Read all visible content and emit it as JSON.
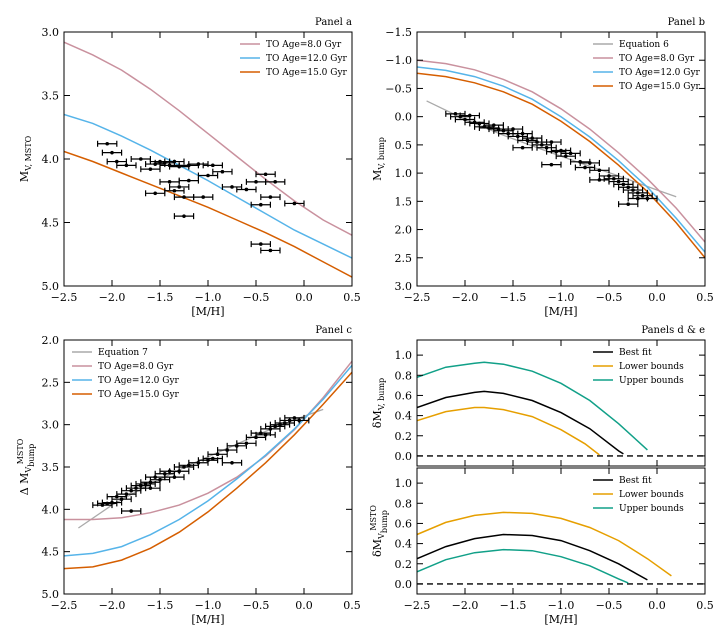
{
  "colors": {
    "age8": "#c9919e",
    "age12": "#56b4e9",
    "age15": "#d55e00",
    "eqn": "#aaaaaa",
    "best": "#000000",
    "lower": "#e69f00",
    "upper": "#11a088",
    "data": "#000000"
  },
  "chart_data": [
    {
      "id": "a",
      "type": "line",
      "title": "Panel a",
      "xlabel": "[M/H]",
      "ylabel_main": "M",
      "ylabel_sub": "V, MSTO",
      "xlim": [
        -2.5,
        0.5
      ],
      "ylim": [
        3.0,
        5.0
      ],
      "y_inverted": true,
      "x_ticks": [
        -2.5,
        -2.0,
        -1.5,
        -1.0,
        -0.5,
        0.0,
        0.5
      ],
      "x_tick_labels": [
        "−2.5",
        "−2.0",
        "−1.5",
        "−1.0",
        "−0.5",
        "0.0",
        "0.5"
      ],
      "y_ticks": [
        3.0,
        3.5,
        4.0,
        4.5,
        5.0
      ],
      "y_tick_labels": [
        "3.0",
        "3.5",
        "4.0",
        "4.5",
        "5.0"
      ],
      "legend": "top-right",
      "series": [
        {
          "name": "TO Age=8.0 Gyr",
          "color_key": "age8",
          "x": [
            -2.5,
            -2.2,
            -1.9,
            -1.6,
            -1.3,
            -1.0,
            -0.7,
            -0.4,
            -0.1,
            0.2,
            0.5
          ],
          "y": [
            3.08,
            3.18,
            3.3,
            3.45,
            3.62,
            3.8,
            3.98,
            4.16,
            4.33,
            4.48,
            4.6
          ]
        },
        {
          "name": "TO Age=12.0 Gyr",
          "color_key": "age12",
          "x": [
            -2.5,
            -2.2,
            -1.9,
            -1.6,
            -1.3,
            -1.0,
            -0.7,
            -0.4,
            -0.1,
            0.2,
            0.5
          ],
          "y": [
            3.65,
            3.72,
            3.82,
            3.93,
            4.05,
            4.17,
            4.3,
            4.43,
            4.56,
            4.67,
            4.78
          ]
        },
        {
          "name": "TO Age=15.0 Gyr",
          "color_key": "age15",
          "x": [
            -2.5,
            -2.2,
            -1.9,
            -1.6,
            -1.3,
            -1.0,
            -0.7,
            -0.4,
            -0.1,
            0.2,
            0.5
          ],
          "y": [
            3.94,
            4.02,
            4.11,
            4.2,
            4.29,
            4.38,
            4.48,
            4.58,
            4.69,
            4.81,
            4.93
          ]
        }
      ],
      "points": {
        "x": [
          -2.05,
          -2.0,
          -1.95,
          -1.85,
          -1.7,
          -1.6,
          -1.55,
          -1.5,
          -1.45,
          -1.4,
          -1.35,
          -1.3,
          -1.2,
          -1.1,
          -0.95,
          -0.85,
          -1.4,
          -1.3,
          -1.2,
          -1.0,
          -0.75,
          -0.6,
          -0.5,
          -0.4,
          -0.3,
          -1.55,
          -1.35,
          -1.05,
          -0.45,
          -0.35,
          -0.1,
          -0.45,
          -0.35,
          -1.25,
          -1.25
        ],
        "y": [
          3.88,
          3.95,
          4.02,
          4.05,
          4.0,
          4.08,
          4.04,
          4.02,
          4.03,
          4.05,
          4.02,
          4.06,
          4.05,
          4.04,
          4.05,
          4.1,
          4.18,
          4.22,
          4.17,
          4.13,
          4.22,
          4.24,
          4.18,
          4.12,
          4.18,
          4.27,
          4.25,
          4.3,
          4.36,
          4.3,
          4.35,
          4.67,
          4.72,
          4.45,
          4.3
        ],
        "xerr": 0.1
      }
    },
    {
      "id": "b",
      "type": "line",
      "title": "Panel b",
      "xlabel": "[M/H]",
      "ylabel_main": "M",
      "ylabel_sub": "V, bump",
      "xlim": [
        -2.5,
        0.5
      ],
      "ylim": [
        -1.5,
        3.0
      ],
      "y_inverted": true,
      "x_ticks": [
        -2.5,
        -2.0,
        -1.5,
        -1.0,
        -0.5,
        0.0,
        0.5
      ],
      "x_tick_labels": [
        "−2.5",
        "−2.0",
        "−1.5",
        "−1.0",
        "−0.5",
        "0.0",
        "0.5"
      ],
      "y_ticks": [
        -1.5,
        -1.0,
        -0.5,
        0.0,
        0.5,
        1.0,
        1.5,
        2.0,
        2.5,
        3.0
      ],
      "y_tick_labels": [
        "−1.5",
        "−1.0",
        "−0.5",
        "0.0",
        "0.5",
        "1.0",
        "1.5",
        "2.0",
        "2.5",
        "3.0"
      ],
      "legend": "top-right",
      "series": [
        {
          "name": "Equation 6",
          "color_key": "eqn",
          "x": [
            -2.4,
            -2.0,
            -1.6,
            -1.2,
            -0.8,
            -0.4,
            0.0,
            0.2
          ],
          "y": [
            -0.28,
            0.05,
            0.33,
            0.58,
            0.82,
            1.05,
            1.3,
            1.42
          ]
        },
        {
          "name": "TO Age=8.0 Gyr",
          "color_key": "age8",
          "x": [
            -2.5,
            -2.2,
            -1.9,
            -1.6,
            -1.3,
            -1.0,
            -0.7,
            -0.4,
            -0.1,
            0.2,
            0.5
          ],
          "y": [
            -1.0,
            -0.94,
            -0.83,
            -0.66,
            -0.44,
            -0.14,
            0.22,
            0.64,
            1.1,
            1.62,
            2.22
          ]
        },
        {
          "name": "TO Age=12.0 Gyr",
          "color_key": "age12",
          "x": [
            -2.5,
            -2.2,
            -1.9,
            -1.6,
            -1.3,
            -1.0,
            -0.7,
            -0.4,
            -0.1,
            0.2,
            0.5
          ],
          "y": [
            -0.88,
            -0.82,
            -0.71,
            -0.54,
            -0.31,
            0.0,
            0.36,
            0.78,
            1.25,
            1.8,
            2.4
          ]
        },
        {
          "name": "TO Age=15.0 Gyr",
          "color_key": "age15",
          "x": [
            -2.5,
            -2.2,
            -1.9,
            -1.6,
            -1.3,
            -1.0,
            -0.7,
            -0.4,
            -0.1,
            0.2,
            0.5
          ],
          "y": [
            -0.77,
            -0.71,
            -0.6,
            -0.44,
            -0.22,
            0.08,
            0.44,
            0.86,
            1.33,
            1.88,
            2.5
          ]
        }
      ],
      "points": {
        "x": [
          -2.1,
          -2.05,
          -2.0,
          -1.95,
          -1.9,
          -1.85,
          -1.8,
          -1.75,
          -1.7,
          -1.65,
          -1.6,
          -1.55,
          -1.5,
          -1.45,
          -1.4,
          -1.35,
          -1.3,
          -1.25,
          -1.2,
          -1.15,
          -1.1,
          -1.05,
          -1.0,
          -0.95,
          -0.9,
          -0.8,
          -0.75,
          -0.7,
          -0.6,
          -0.5,
          -0.45,
          -0.4,
          -0.35,
          -0.3,
          -0.25,
          -0.2,
          -0.15,
          -0.1,
          -1.4,
          -1.1,
          -0.6,
          -0.3,
          -0.2
        ],
        "y": [
          -0.05,
          0.0,
          0.05,
          -0.02,
          0.1,
          0.12,
          0.18,
          0.2,
          0.15,
          0.22,
          0.25,
          0.3,
          0.22,
          0.35,
          0.3,
          0.42,
          0.38,
          0.45,
          0.5,
          0.55,
          0.45,
          0.62,
          0.6,
          0.7,
          0.65,
          0.8,
          0.9,
          0.82,
          0.95,
          1.05,
          1.1,
          1.15,
          1.2,
          1.25,
          1.3,
          1.35,
          1.4,
          1.45,
          0.55,
          0.85,
          1.12,
          1.55,
          1.45
        ],
        "xerr": 0.1
      }
    },
    {
      "id": "c",
      "type": "line",
      "title": "Panel c",
      "xlabel": "[M/H]",
      "ylabel_main": "Δ M",
      "ylabel_sub": "V",
      "ylabel_sup": "MSTO",
      "ylabel_sub2": "bump",
      "xlim": [
        -2.5,
        0.5
      ],
      "ylim": [
        2.0,
        5.0
      ],
      "y_inverted": true,
      "x_ticks": [
        -2.5,
        -2.0,
        -1.5,
        -1.0,
        -0.5,
        0.0,
        0.5
      ],
      "x_tick_labels": [
        "−2.5",
        "−2.0",
        "−1.5",
        "−1.0",
        "−0.5",
        "0.0",
        "0.5"
      ],
      "y_ticks": [
        2.0,
        2.5,
        3.0,
        3.5,
        4.0,
        4.5,
        5.0
      ],
      "y_tick_labels": [
        "2.0",
        "2.5",
        "3.0",
        "3.5",
        "4.0",
        "4.5",
        "5.0"
      ],
      "legend": "top-left",
      "series": [
        {
          "name": "Equation 7",
          "color_key": "eqn",
          "x": [
            -2.35,
            -2.0,
            -1.6,
            -1.2,
            -0.8,
            -0.4,
            0.0,
            0.2
          ],
          "y": [
            4.22,
            3.95,
            3.7,
            3.48,
            3.28,
            3.08,
            2.9,
            2.82
          ]
        },
        {
          "name": "TO Age=8.0 Gyr",
          "color_key": "age8",
          "x": [
            -2.5,
            -2.2,
            -1.9,
            -1.6,
            -1.3,
            -1.0,
            -0.7,
            -0.4,
            -0.1,
            0.2,
            0.5
          ],
          "y": [
            4.12,
            4.12,
            4.1,
            4.04,
            3.95,
            3.81,
            3.62,
            3.37,
            3.06,
            2.68,
            2.25
          ]
        },
        {
          "name": "TO Age=12.0 Gyr",
          "color_key": "age12",
          "x": [
            -2.5,
            -2.2,
            -1.9,
            -1.6,
            -1.3,
            -1.0,
            -0.7,
            -0.4,
            -0.1,
            0.2,
            0.5
          ],
          "y": [
            4.55,
            4.52,
            4.44,
            4.3,
            4.12,
            3.9,
            3.64,
            3.36,
            3.05,
            2.7,
            2.3
          ]
        },
        {
          "name": "TO Age=15.0 Gyr",
          "color_key": "age15",
          "x": [
            -2.5,
            -2.2,
            -1.9,
            -1.6,
            -1.3,
            -1.0,
            -0.7,
            -0.4,
            -0.1,
            0.2,
            0.5
          ],
          "y": [
            4.7,
            4.68,
            4.6,
            4.46,
            4.27,
            4.03,
            3.75,
            3.45,
            3.12,
            2.76,
            2.38
          ]
        }
      ],
      "points": {
        "x": [
          -2.1,
          -2.05,
          -2.0,
          -1.95,
          -1.9,
          -1.85,
          -1.8,
          -1.75,
          -1.7,
          -1.65,
          -1.6,
          -1.55,
          -1.5,
          -1.45,
          -1.4,
          -1.35,
          -1.3,
          -1.25,
          -1.2,
          -1.1,
          -1.0,
          -0.95,
          -0.9,
          -0.8,
          -0.7,
          -0.6,
          -0.5,
          -0.45,
          -0.4,
          -0.35,
          -0.3,
          -0.25,
          -0.2,
          -0.15,
          -0.1,
          -0.05,
          -1.8,
          -1.6,
          -0.75
        ],
        "y": [
          3.95,
          3.93,
          3.92,
          3.85,
          3.88,
          3.82,
          3.78,
          3.75,
          3.72,
          3.7,
          3.68,
          3.62,
          3.65,
          3.58,
          3.55,
          3.62,
          3.55,
          3.5,
          3.48,
          3.45,
          3.42,
          3.4,
          3.35,
          3.3,
          3.25,
          3.22,
          3.15,
          3.1,
          3.12,
          3.05,
          3.02,
          3.0,
          2.98,
          2.95,
          2.92,
          2.95,
          4.02,
          3.75,
          3.45
        ],
        "xerr": 0.1
      }
    },
    {
      "id": "d",
      "type": "line",
      "title": "Panels d & e",
      "xlabel": "",
      "ylabel_main": "δM",
      "ylabel_sub": "V, bump",
      "xlim": [
        -2.5,
        0.5
      ],
      "ylim": [
        -0.1,
        1.15
      ],
      "y_inverted": false,
      "x_ticks": [
        -2.5,
        -2.0,
        -1.5,
        -1.0,
        -0.5,
        0.0,
        0.5
      ],
      "x_tick_labels": [],
      "y_ticks": [
        0.0,
        0.2,
        0.4,
        0.6,
        0.8,
        1.0
      ],
      "y_tick_labels": [
        "0.0",
        "0.2",
        "0.4",
        "0.6",
        "0.8",
        "1.0"
      ],
      "legend": "top-right",
      "zero_line": true,
      "series": [
        {
          "name": "Best fit",
          "color_key": "best",
          "x": [
            -2.5,
            -2.2,
            -1.9,
            -1.8,
            -1.6,
            -1.3,
            -1.0,
            -0.7,
            -0.4,
            -0.35
          ],
          "y": [
            0.48,
            0.58,
            0.63,
            0.64,
            0.62,
            0.55,
            0.43,
            0.27,
            0.05,
            0.02
          ]
        },
        {
          "name": "Lower bounds",
          "color_key": "lower",
          "x": [
            -2.5,
            -2.2,
            -1.9,
            -1.8,
            -1.6,
            -1.3,
            -1.0,
            -0.75,
            -0.6
          ],
          "y": [
            0.35,
            0.44,
            0.48,
            0.48,
            0.46,
            0.39,
            0.26,
            0.12,
            0.01
          ]
        },
        {
          "name": "Upper bounds",
          "color_key": "upper",
          "x": [
            -2.5,
            -2.2,
            -1.9,
            -1.8,
            -1.6,
            -1.3,
            -1.0,
            -0.7,
            -0.4,
            -0.1
          ],
          "y": [
            0.78,
            0.88,
            0.92,
            0.93,
            0.91,
            0.84,
            0.72,
            0.55,
            0.32,
            0.06
          ]
        }
      ]
    },
    {
      "id": "e",
      "type": "line",
      "title": "",
      "xlabel": "[M/H]",
      "ylabel_main": "δM",
      "ylabel_sub": "V",
      "ylabel_sup": "MSTO",
      "ylabel_sub2": "bump",
      "xlim": [
        -2.5,
        0.5
      ],
      "ylim": [
        -0.1,
        1.15
      ],
      "y_inverted": false,
      "x_ticks": [
        -2.5,
        -2.0,
        -1.5,
        -1.0,
        -0.5,
        0.0,
        0.5
      ],
      "x_tick_labels": [
        "−2.5",
        "−2.0",
        "−1.5",
        "−1.0",
        "−0.5",
        "0.0",
        "0.5"
      ],
      "y_ticks": [
        0.0,
        0.2,
        0.4,
        0.6,
        0.8,
        1.0
      ],
      "y_tick_labels": [
        "0.0",
        "0.2",
        "0.4",
        "0.6",
        "0.8",
        "1.0"
      ],
      "legend": "top-right",
      "zero_line": true,
      "series": [
        {
          "name": "Best fit",
          "color_key": "best",
          "x": [
            -2.5,
            -2.2,
            -1.9,
            -1.6,
            -1.3,
            -1.0,
            -0.7,
            -0.4,
            -0.1
          ],
          "y": [
            0.25,
            0.37,
            0.45,
            0.49,
            0.48,
            0.43,
            0.33,
            0.2,
            0.04
          ]
        },
        {
          "name": "Lower bounds",
          "color_key": "lower",
          "x": [
            -2.5,
            -2.2,
            -1.9,
            -1.6,
            -1.3,
            -1.0,
            -0.7,
            -0.4,
            -0.1,
            0.15
          ],
          "y": [
            0.49,
            0.61,
            0.68,
            0.71,
            0.7,
            0.65,
            0.56,
            0.43,
            0.25,
            0.08
          ]
        },
        {
          "name": "Upper bounds",
          "color_key": "upper",
          "x": [
            -2.5,
            -2.2,
            -1.9,
            -1.6,
            -1.3,
            -1.0,
            -0.7,
            -0.4,
            -0.3
          ],
          "y": [
            0.12,
            0.24,
            0.31,
            0.34,
            0.33,
            0.27,
            0.18,
            0.05,
            0.01
          ]
        }
      ]
    }
  ]
}
